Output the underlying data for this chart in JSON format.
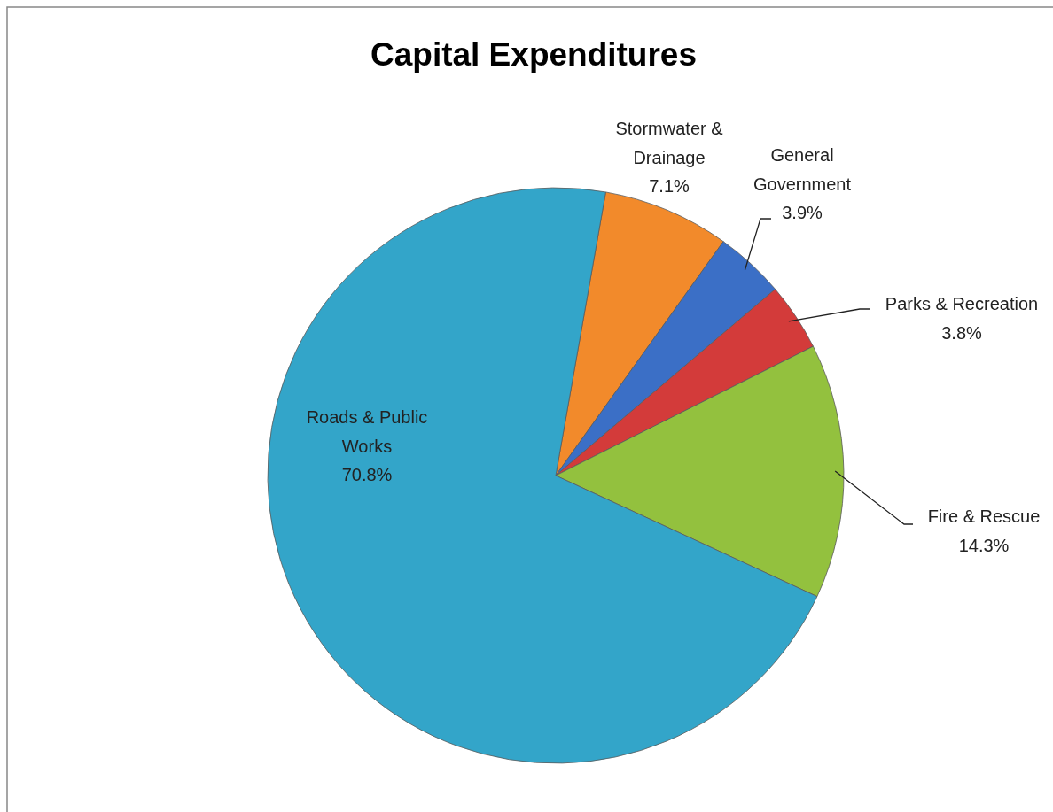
{
  "chart_data": {
    "type": "pie",
    "title": "Capital Expenditures",
    "categories": [
      "Stormwater & Drainage",
      "General Government",
      "Parks & Recreation",
      "Fire & Rescue",
      "Roads & Public Works"
    ],
    "values": [
      7.1,
      3.9,
      3.8,
      14.3,
      70.8
    ],
    "colors": [
      "#f28a2b",
      "#3b6fc6",
      "#d33b3a",
      "#93c13e",
      "#33a5c9"
    ],
    "value_labels": [
      "7.1%",
      "3.9%",
      "3.8%",
      "14.3%",
      "70.8%"
    ],
    "legend": false
  }
}
